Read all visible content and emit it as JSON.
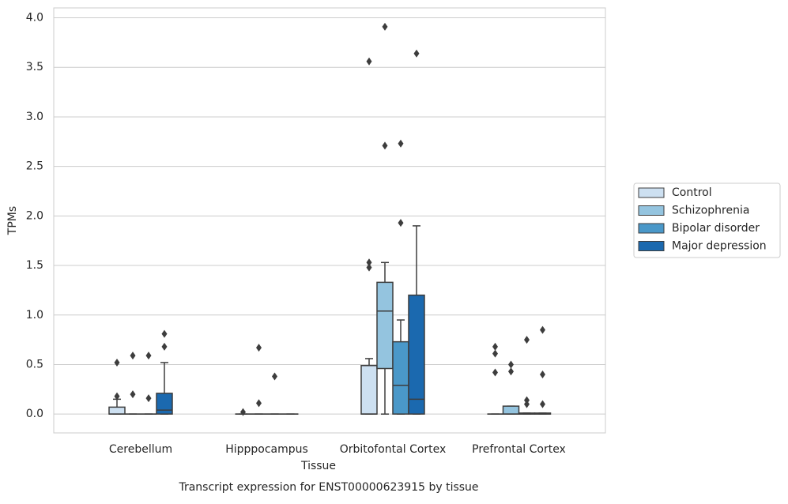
{
  "chart_data": {
    "type": "box",
    "caption": "Transcript expression for ENST00000623915 by tissue",
    "xlabel": "Tissue",
    "ylabel": "TPMs",
    "categories": [
      "Cerebellum",
      "Hipppocampus",
      "Orbitofontal Cortex",
      "Prefrontal Cortex"
    ],
    "ylim": [
      -0.19,
      4.1
    ],
    "yticks": [
      {
        "value": 0,
        "label": "0.0"
      },
      0.5,
      {
        "value": 1,
        "label": "1.0"
      },
      1.5,
      {
        "value": 2,
        "label": "2.0"
      },
      2.5,
      {
        "value": 3,
        "label": "3.0"
      },
      3.5,
      {
        "value": 4,
        "label": "4.0"
      }
    ],
    "grid": true,
    "legend": "right",
    "series": [
      {
        "name": "Control",
        "color": "#cde0f1",
        "stats": [
          {
            "whislo": 0,
            "q1": 0,
            "med": 0,
            "q3": 0.07,
            "whishi": 0.15,
            "fliers": [
              0.52,
              0.18
            ]
          },
          {
            "whislo": 0,
            "q1": 0,
            "med": 0,
            "q3": 0,
            "whishi": 0,
            "fliers": [
              0.02
            ]
          },
          {
            "whislo": 0,
            "q1": 0,
            "med": 0,
            "q3": 0.49,
            "whishi": 0.56,
            "fliers": [
              1.53,
              1.48,
              3.56
            ]
          },
          {
            "whislo": 0,
            "q1": 0,
            "med": 0,
            "q3": 0,
            "whishi": 0,
            "fliers": [
              0.68,
              0.61,
              0.42
            ]
          }
        ]
      },
      {
        "name": "Schizophrenia",
        "color": "#94c4df",
        "stats": [
          {
            "whislo": 0,
            "q1": 0,
            "med": 0,
            "q3": 0,
            "whishi": 0,
            "fliers": [
              0.59,
              0.2
            ]
          },
          {
            "whislo": 0,
            "q1": 0,
            "med": 0,
            "q3": 0,
            "whishi": 0,
            "fliers": [
              0.67,
              0.11
            ]
          },
          {
            "whislo": 0,
            "q1": 0.46,
            "med": 1.04,
            "q3": 1.33,
            "whishi": 1.53,
            "fliers": [
              3.91,
              2.71
            ]
          },
          {
            "whislo": 0,
            "q1": 0,
            "med": 0,
            "q3": 0.08,
            "whishi": 0.08,
            "fliers": [
              0.5,
              0.43
            ]
          }
        ]
      },
      {
        "name": "Bipolar disorder",
        "color": "#4a98c9",
        "stats": [
          {
            "whislo": 0,
            "q1": 0,
            "med": 0,
            "q3": 0,
            "whishi": 0,
            "fliers": [
              0.59,
              0.16
            ]
          },
          {
            "whislo": 0,
            "q1": 0,
            "med": 0,
            "q3": 0,
            "whishi": 0,
            "fliers": [
              0.38
            ]
          },
          {
            "whislo": 0,
            "q1": 0,
            "med": 0.29,
            "q3": 0.73,
            "whishi": 0.95,
            "fliers": [
              2.73,
              1.93
            ]
          },
          {
            "whislo": 0,
            "q1": 0,
            "med": 0,
            "q3": 0.01,
            "whishi": 0.01,
            "fliers": [
              0.75,
              0.14,
              0.1
            ]
          }
        ]
      },
      {
        "name": "Major depression",
        "color": "#1b69af",
        "stats": [
          {
            "whislo": 0,
            "q1": 0,
            "med": 0.04,
            "q3": 0.21,
            "whishi": 0.52,
            "fliers": [
              0.81,
              0.68
            ]
          },
          {
            "whislo": 0,
            "q1": 0,
            "med": 0,
            "q3": 0,
            "whishi": 0,
            "fliers": []
          },
          {
            "whislo": 0,
            "q1": 0,
            "med": 0.15,
            "q3": 1.2,
            "whishi": 1.9,
            "fliers": [
              3.64
            ]
          },
          {
            "whislo": 0,
            "q1": 0,
            "med": 0,
            "q3": 0.01,
            "whishi": 0.01,
            "fliers": [
              0.85,
              0.4,
              0.1
            ]
          }
        ]
      }
    ]
  }
}
